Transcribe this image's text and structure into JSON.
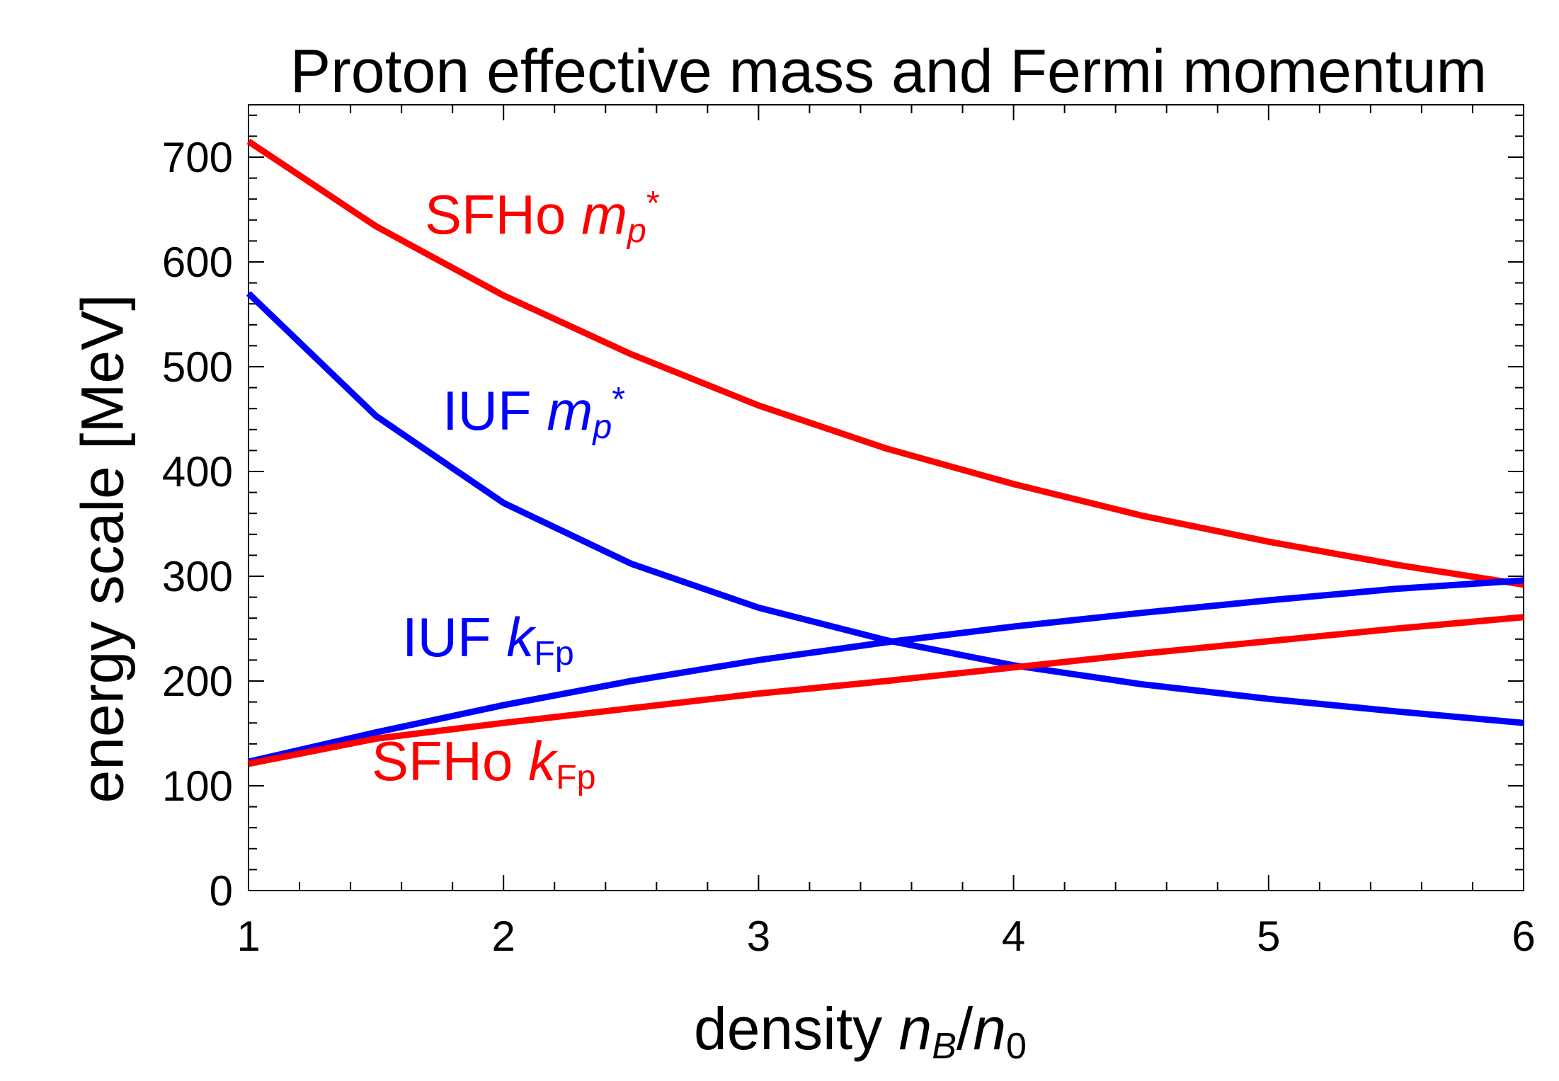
{
  "chart_data": {
    "type": "line",
    "title": "Proton effective mass and Fermi momentum",
    "xlabel": {
      "prefix": "density ",
      "num": "n",
      "num_sub": "B",
      "slash": "/",
      "den": "n",
      "den_sub": "0"
    },
    "ylabel": "energy scale [MeV]",
    "xlim": [
      1,
      6
    ],
    "ylim": [
      0,
      750
    ],
    "x_ticks": [
      "1",
      "2",
      "3",
      "4",
      "5",
      "6"
    ],
    "y_ticks": [
      "0",
      "100",
      "200",
      "300",
      "400",
      "500",
      "600",
      "700"
    ],
    "x": [
      1,
      1.5,
      2,
      2.5,
      3,
      3.5,
      4,
      4.5,
      5,
      5.5,
      6
    ],
    "series": [
      {
        "name": "SFHo m_p*",
        "color": "#ff0000",
        "values": [
          715,
          634,
          568,
          512,
          463,
          422,
          388,
          358,
          333,
          311,
          292
        ]
      },
      {
        "name": "IUF m_p*",
        "color": "#0000ff",
        "values": [
          570,
          453,
          370,
          312,
          270,
          239,
          215,
          197,
          183,
          171,
          160
        ]
      },
      {
        "name": "IUF k_Fp",
        "color": "#0000ff",
        "values": [
          123,
          151,
          177,
          200,
          220,
          237,
          252,
          265,
          277,
          288,
          296
        ]
      },
      {
        "name": "SFHo k_Fp",
        "color": "#ff0000",
        "values": [
          121,
          145,
          160,
          174,
          188,
          200,
          213,
          226,
          238,
          250,
          261
        ]
      }
    ],
    "annotations": {
      "sfho_mp": {
        "name": "SFHo ",
        "sym": "m",
        "sub": "p",
        "sup": "*"
      },
      "iuf_mp": {
        "name": "IUF ",
        "sym": "m",
        "sub": "p",
        "sup": "*"
      },
      "iuf_kfp": {
        "name": "IUF ",
        "sym": "k",
        "sub": "Fp"
      },
      "sfho_kfp": {
        "name": "SFHo ",
        "sym": "k",
        "sub": "Fp"
      }
    }
  }
}
